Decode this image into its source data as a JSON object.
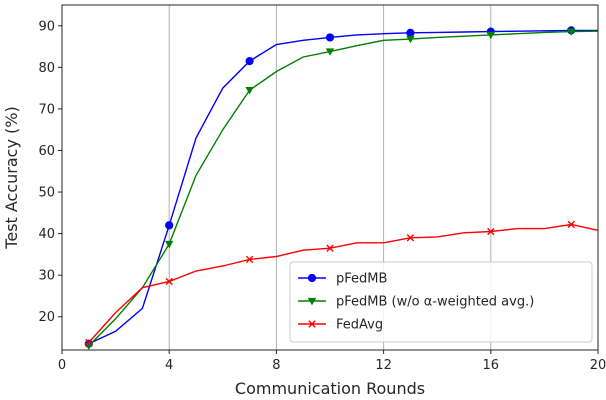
{
  "chart_data": {
    "type": "line",
    "xlabel": "Communication Rounds",
    "ylabel": "Test Accuracy (%)",
    "xlim": [
      0,
      20
    ],
    "ylim": [
      12,
      95
    ],
    "xticks": [
      0,
      4,
      8,
      12,
      16,
      20
    ],
    "yticks": [
      20,
      30,
      40,
      50,
      60,
      70,
      80,
      90
    ],
    "xtick_labels": [
      "0",
      "4",
      "8",
      "12",
      "16",
      "20"
    ],
    "ytick_labels": [
      "20",
      "30",
      "40",
      "50",
      "60",
      "70",
      "80",
      "90"
    ],
    "grid": true,
    "legend_position": "lower-right",
    "series": [
      {
        "name": "pFedMB",
        "color": "#0000ff",
        "marker": "circle",
        "x": [
          1,
          2,
          3,
          4,
          5,
          6,
          7,
          8,
          9,
          10,
          11,
          12,
          13,
          14,
          15,
          16,
          17,
          18,
          19,
          20
        ],
        "y": [
          13.5,
          16.5,
          22,
          42,
          63,
          75,
          81.5,
          85.5,
          86.5,
          87.2,
          87.8,
          88.1,
          88.3,
          88.4,
          88.5,
          88.6,
          88.7,
          88.8,
          88.9,
          88.9
        ],
        "marker_indices": [
          0,
          3,
          6,
          9,
          12,
          15,
          18
        ]
      },
      {
        "name": "pFedMB (w/o α-weighted avg.)",
        "color": "#008000",
        "marker": "triangle-down",
        "x": [
          1,
          2,
          3,
          4,
          5,
          6,
          7,
          8,
          9,
          10,
          11,
          12,
          13,
          14,
          15,
          16,
          17,
          18,
          19,
          20
        ],
        "y": [
          13,
          19.5,
          27,
          37.5,
          54,
          65,
          74.5,
          79,
          82.5,
          83.8,
          85.2,
          86.5,
          86.8,
          87.2,
          87.5,
          87.8,
          88.1,
          88.4,
          88.6,
          88.7
        ],
        "marker_indices": [
          0,
          3,
          6,
          9,
          12,
          15,
          18
        ]
      },
      {
        "name": "FedAvg",
        "color": "#ff0000",
        "marker": "x",
        "x": [
          1,
          2,
          3,
          4,
          5,
          6,
          7,
          8,
          9,
          10,
          11,
          12,
          13,
          14,
          15,
          16,
          17,
          18,
          19,
          20
        ],
        "y": [
          13.8,
          21,
          27,
          28.5,
          31,
          32.2,
          33.8,
          34.5,
          36,
          36.5,
          37.8,
          37.8,
          39,
          39.2,
          40.2,
          40.5,
          41.2,
          41.2,
          42.2,
          40.8
        ],
        "marker_indices": [
          0,
          3,
          6,
          9,
          12,
          15,
          18
        ]
      }
    ]
  }
}
